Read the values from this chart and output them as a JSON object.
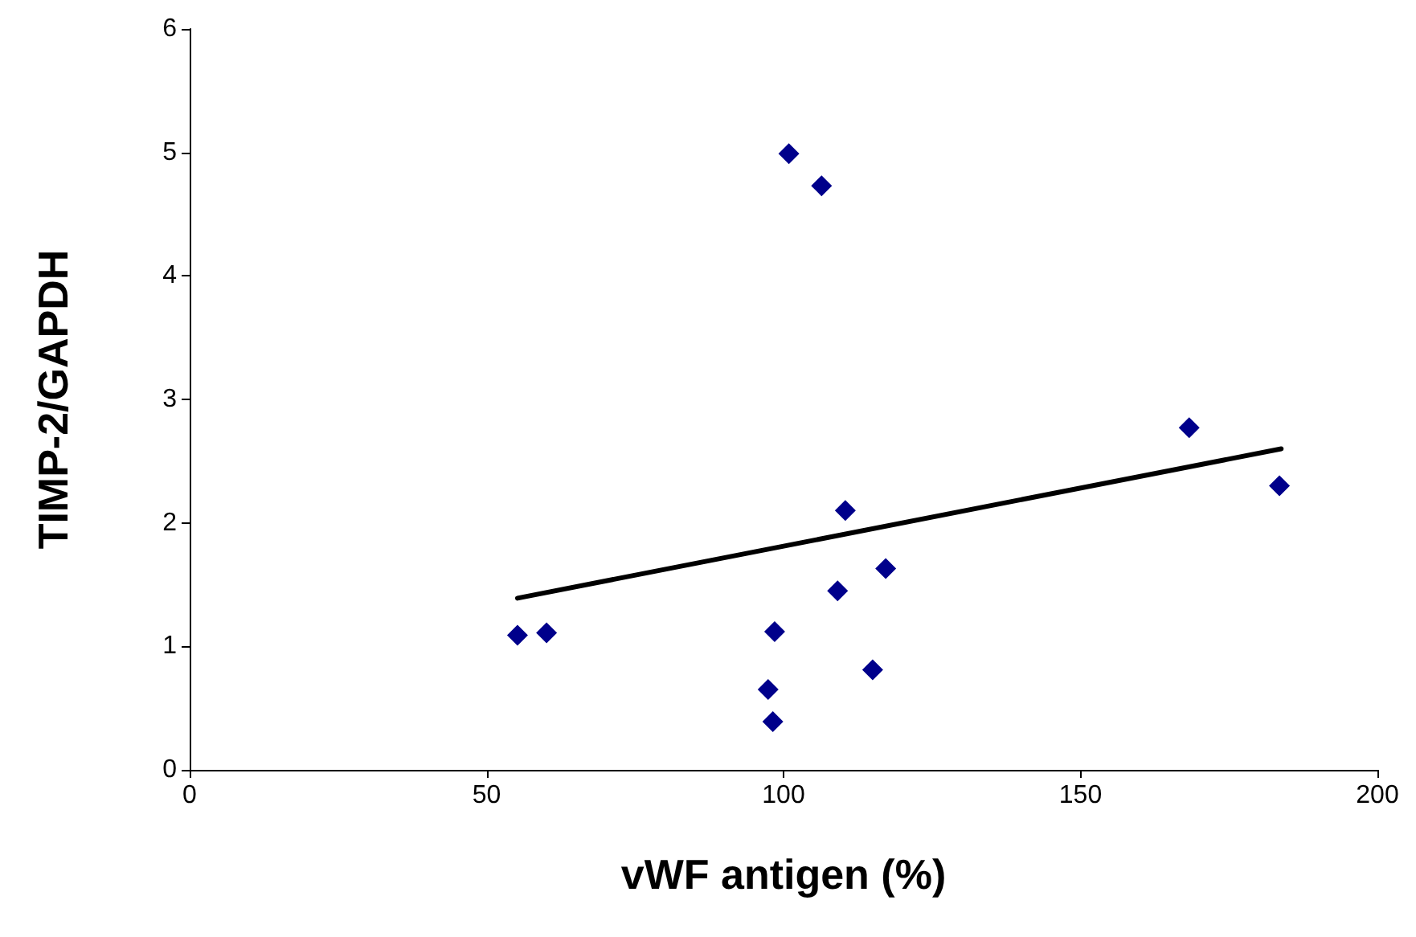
{
  "chart_data": {
    "type": "scatter",
    "xlabel": "vWF antigen (%)",
    "ylabel": "TIMP-2/GAPDH",
    "xlim": [
      0,
      200
    ],
    "xticks": [
      0,
      50,
      100,
      150,
      200
    ],
    "ylim": [
      0,
      6
    ],
    "yticks": [
      0,
      1,
      2,
      3,
      4,
      5,
      6
    ],
    "grid": false,
    "marker": "diamond",
    "series": [
      {
        "type": "scatter",
        "color": "#00008b",
        "x": [
          55.2,
          60.1,
          100.9,
          106.4,
          98.5,
          97.4,
          98.2,
          109.1,
          110.4,
          117.2,
          115.0,
          168.3,
          183.5
        ],
        "values": [
          1.09,
          1.11,
          4.99,
          4.73,
          1.12,
          0.65,
          0.39,
          1.45,
          2.1,
          1.63,
          0.81,
          2.77,
          2.3
        ]
      },
      {
        "type": "line",
        "color": "#000000",
        "marker": "none",
        "line_style": "solid",
        "x": [
          55.2,
          183.8
        ],
        "values": [
          1.39,
          2.6
        ]
      }
    ]
  }
}
